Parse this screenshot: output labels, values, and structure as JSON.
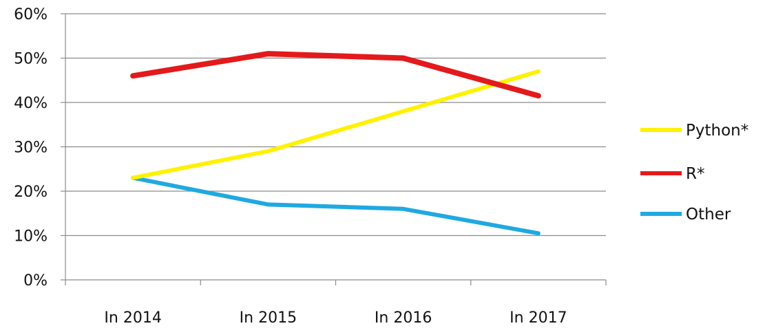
{
  "chart_data": {
    "type": "line",
    "categories": [
      "In 2014",
      "In 2015",
      "In 2016",
      "In 2017"
    ],
    "y_ticks": [
      "0%",
      "10%",
      "20%",
      "30%",
      "40%",
      "50%",
      "60%"
    ],
    "ylim": [
      0,
      60
    ],
    "y_unit": "%",
    "grid": "horizontal",
    "legend_position": "right",
    "series": [
      {
        "name": "Python*",
        "color": "#FFF200",
        "values": [
          23,
          29,
          38,
          47
        ]
      },
      {
        "name": "R*",
        "color": "#E31A1C",
        "values": [
          46,
          51,
          50,
          41.5
        ]
      },
      {
        "name": "Other",
        "color": "#1FA9E1",
        "values": [
          23,
          17,
          16,
          10.5
        ]
      }
    ]
  }
}
